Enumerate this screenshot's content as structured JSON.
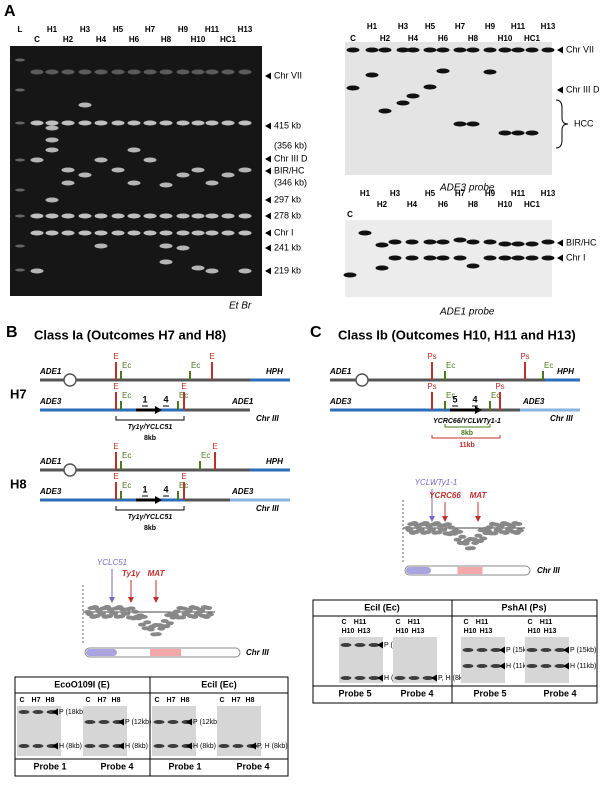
{
  "panel_a": {
    "label": "A",
    "etbr_gel": {
      "lanes_row1": [
        "L",
        "H1",
        "H3",
        "H5",
        "H7",
        "H9",
        "H11",
        "H13"
      ],
      "lanes_row2": [
        "C",
        "H2",
        "H4",
        "H6",
        "H8",
        "H10",
        "HC1"
      ],
      "markers": [
        "Chr VII",
        "415 kb",
        "(356 kb)",
        "Chr III D",
        "BIR/HC",
        "(346 kb)",
        "297 kb",
        "278 kb",
        "Chr I",
        "241 kb",
        "219 kb"
      ],
      "caption": "Et Br"
    },
    "ade3_blot": {
      "lanes_row1": [
        "H1",
        "H3",
        "H5",
        "H7",
        "H9",
        "H11",
        "H13"
      ],
      "lanes_row2": [
        "C",
        "H2",
        "H4",
        "H6",
        "H8",
        "H10",
        "HC1"
      ],
      "markers": [
        "Chr VII",
        "Chr III D"
      ],
      "bracket_label": "HCC",
      "caption": "ADE3 probe"
    },
    "ade1_blot": {
      "lanes_row1": [
        "H1",
        "H3",
        "H5",
        "H7",
        "H9",
        "H11",
        "H13"
      ],
      "lanes_row2": [
        "H2",
        "H4",
        "H6",
        "H8",
        "H10",
        "HC1"
      ],
      "lane_c": "C",
      "markers": [
        "BIR/HC",
        "Chr I"
      ],
      "caption": "ADE1 probe"
    }
  },
  "panel_b": {
    "label": "B",
    "title": "Class Ia (Outcomes H7 and H8)",
    "diagrams": [
      {
        "name": "H7",
        "top": {
          "left": "ADE1",
          "right": "HPH",
          "sites": [
            "E",
            "Ec",
            "Ec",
            "E"
          ]
        },
        "bottom": {
          "left": "ADE3",
          "right": "ADE1",
          "chromosome": "Chr III",
          "sites": [
            "E",
            "Ec",
            "Ec",
            "E"
          ],
          "probes": [
            "1",
            "4"
          ],
          "element": "Ty1γ/YCLC51",
          "size": "8kb"
        }
      },
      {
        "name": "H8",
        "top": {
          "left": "ADE1",
          "right": "HPH",
          "sites": [
            "E",
            "Ec",
            "Ec",
            "E"
          ]
        },
        "bottom": {
          "left": "ADE3",
          "right": "ADE3",
          "chromosome": "Chr III",
          "sites": [
            "E",
            "Ec",
            "Ec",
            "E"
          ],
          "probes": [
            "1",
            "4"
          ],
          "element": "Ty1γ/YCLC51",
          "size": "8kb"
        }
      }
    ],
    "map": {
      "labels": [
        "YCLC51",
        "Ty1γ",
        "MAT"
      ],
      "chromosome": "Chr III"
    },
    "southern": {
      "headers": [
        "EcoO109I (E)",
        "EciI (Ec)"
      ],
      "lanes": [
        [
          "C",
          "H7",
          "H8"
        ],
        [
          "C",
          "H7",
          "H8"
        ],
        [
          "C",
          "H7",
          "H8"
        ],
        [
          "C",
          "H7",
          "H8"
        ]
      ],
      "bands": [
        [
          "P (18kb)",
          "H (8kb)"
        ],
        [
          "P (12kb)",
          "H (8kb)"
        ],
        [
          "P (12kb)",
          "H (8kb)"
        ],
        [
          "P, H (8kb)"
        ]
      ],
      "probes": [
        "Probe 1",
        "Probe 4",
        "Probe 1",
        "Probe 4"
      ]
    }
  },
  "panel_c": {
    "label": "C",
    "title": "Class Ib (Outcomes H10, H11 and H13)",
    "diagram": {
      "top": {
        "left": "ADE1",
        "right": "HPH",
        "sites": [
          "Ps",
          "Ec",
          "Ps",
          "Ec"
        ]
      },
      "bottom": {
        "left": "ADE3",
        "right": "ADE3",
        "chromosome": "Chr III",
        "sites": [
          "Ps",
          "Ec",
          "Ec",
          "Ps"
        ],
        "probes": [
          "5",
          "4"
        ],
        "element": "YCRC66/YCLWTy1-1",
        "sizes": [
          "8kb",
          "11kb"
        ]
      }
    },
    "map": {
      "labels": [
        "YCLWTy1-1",
        "YCRC66",
        "MAT"
      ],
      "chromosome": "Chr III"
    },
    "southern": {
      "headers": [
        "EciI (Ec)",
        "PshAI (Ps)"
      ],
      "lanes": [
        [
          "C",
          "H11",
          "H10",
          "H13"
        ],
        [
          "C",
          "H11",
          "H10",
          "H13"
        ],
        [
          "C",
          "H11",
          "H10",
          "H13"
        ],
        [
          "C",
          "H11",
          "H10",
          "H13"
        ]
      ],
      "bands": [
        [
          "P (20kb)",
          "H (8kb)"
        ],
        [
          "P, H (8kb)"
        ],
        [
          "P (15kb)",
          "H (11kb)"
        ],
        [
          "P (15kb)",
          "H (11kb)"
        ]
      ],
      "probes": [
        "Probe 5",
        "Probe 4",
        "Probe 5",
        "Probe 4"
      ]
    }
  }
}
